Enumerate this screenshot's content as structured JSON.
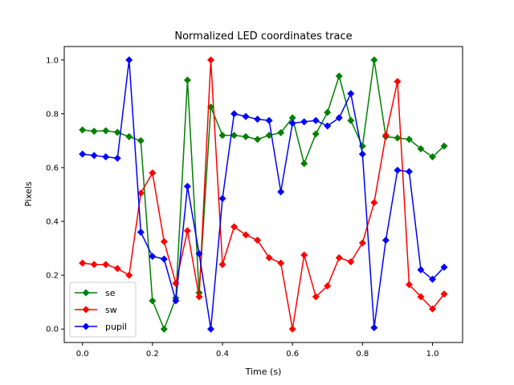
{
  "chart_data": {
    "type": "line",
    "title": "Normalized LED coordinates trace",
    "xlabel": "Time (s)",
    "ylabel": "Pixels",
    "xlim": [
      -0.052,
      1.086
    ],
    "ylim": [
      -0.05,
      1.05
    ],
    "xticks": [
      0.0,
      0.2,
      0.4,
      0.6,
      0.8,
      1.0
    ],
    "xtick_labels": [
      "0.0",
      "0.2",
      "0.4",
      "0.6",
      "0.8",
      "1.0"
    ],
    "yticks": [
      0.0,
      0.2,
      0.4,
      0.6,
      0.8,
      1.0
    ],
    "ytick_labels": [
      "0.0",
      "0.2",
      "0.4",
      "0.6",
      "0.8",
      "1.0"
    ],
    "grid": false,
    "legend_position": "lower-left",
    "x": [
      0.0,
      0.0333,
      0.0667,
      0.1,
      0.1333,
      0.1667,
      0.2,
      0.2333,
      0.2667,
      0.3,
      0.3333,
      0.3667,
      0.4,
      0.4333,
      0.4667,
      0.5,
      0.5333,
      0.5667,
      0.6,
      0.6333,
      0.6667,
      0.7,
      0.7333,
      0.7667,
      0.8,
      0.8333,
      0.8667,
      0.9,
      0.9333,
      0.9667,
      1.0,
      1.0333
    ],
    "series": [
      {
        "name": "se",
        "color": "#008000",
        "marker": "diamond",
        "values": [
          0.74,
          0.735,
          0.737,
          0.731,
          0.715,
          0.7,
          0.105,
          0.0,
          0.115,
          0.925,
          0.135,
          0.825,
          0.72,
          0.72,
          0.715,
          0.705,
          0.72,
          0.73,
          0.785,
          0.615,
          0.725,
          0.805,
          0.94,
          0.775,
          0.68,
          1.0,
          0.715,
          0.71,
          0.705,
          0.67,
          0.64,
          0.68
        ]
      },
      {
        "name": "sw",
        "color": "#ff0000",
        "marker": "diamond",
        "values": [
          0.245,
          0.24,
          0.24,
          0.225,
          0.2,
          0.505,
          0.58,
          0.325,
          0.17,
          0.365,
          0.12,
          1.0,
          0.24,
          0.38,
          0.35,
          0.33,
          0.265,
          0.245,
          0.0,
          0.275,
          0.12,
          0.16,
          0.265,
          0.25,
          0.32,
          0.47,
          0.72,
          0.92,
          0.165,
          0.12,
          0.075,
          0.13
        ]
      },
      {
        "name": "pupil",
        "color": "#0000ff",
        "marker": "diamond",
        "values": [
          0.65,
          0.645,
          0.64,
          0.635,
          1.0,
          0.36,
          0.27,
          0.26,
          0.105,
          0.53,
          0.28,
          0.0,
          0.485,
          0.8,
          0.79,
          0.78,
          0.775,
          0.51,
          0.765,
          0.77,
          0.775,
          0.755,
          0.785,
          0.875,
          0.65,
          0.005,
          0.33,
          0.59,
          0.585,
          0.22,
          0.185,
          0.23
        ]
      }
    ]
  }
}
